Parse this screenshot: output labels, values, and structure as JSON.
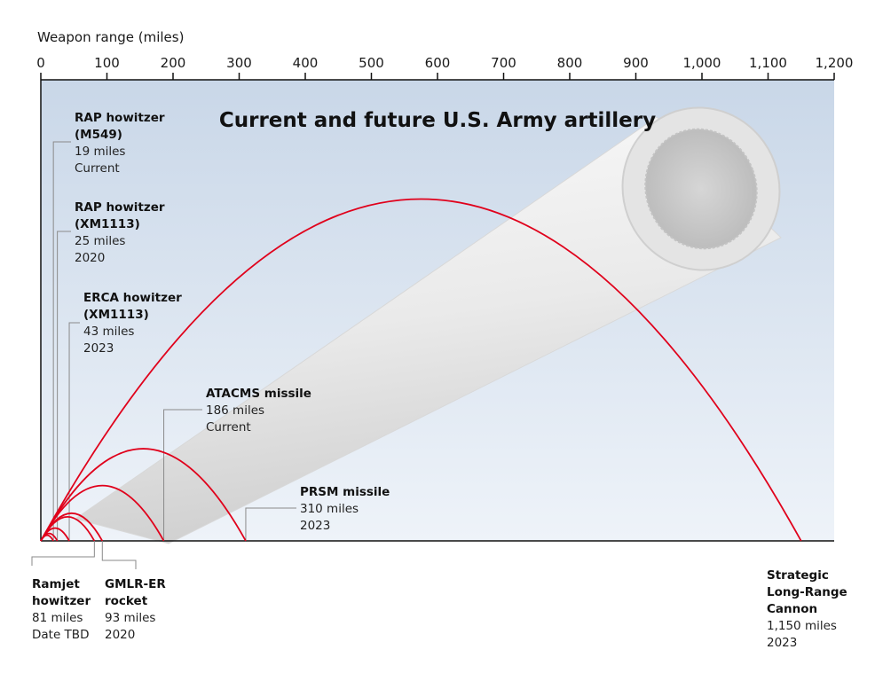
{
  "chart_data": {
    "type": "line",
    "title": "Current and future U.S. Army artillery",
    "xlabel": "Weapon range (miles)",
    "xlim": [
      0,
      1200
    ],
    "xticks": [
      "0",
      "100",
      "200",
      "300",
      "400",
      "500",
      "600",
      "700",
      "800",
      "900",
      "1,000",
      "1,100",
      "1,200"
    ],
    "xtick_values": [
      0,
      100,
      200,
      300,
      400,
      500,
      600,
      700,
      800,
      900,
      1000,
      1100,
      1200
    ],
    "grid": false,
    "arc_color": "#e0001b",
    "series": [
      {
        "id": "rap-m549",
        "name_lines": [
          "RAP howitzer",
          "(M549)"
        ],
        "range_text": "19 miles",
        "date": "Current",
        "range": 19
      },
      {
        "id": "rap-xm1113",
        "name_lines": [
          "RAP howitzer",
          "(XM1113)"
        ],
        "range_text": "25 miles",
        "date": "2020",
        "range": 25
      },
      {
        "id": "erca",
        "name_lines": [
          "ERCA howitzer",
          "(XM1113)"
        ],
        "range_text": "43 miles",
        "date": "2023",
        "range": 43
      },
      {
        "id": "ramjet",
        "name_lines": [
          "Ramjet",
          "howitzer"
        ],
        "range_text": "81 miles",
        "date": "Date TBD",
        "range": 81
      },
      {
        "id": "gmlr",
        "name_lines": [
          "GMLR-ER",
          "rocket"
        ],
        "range_text": "93 miles",
        "date": "2020",
        "range": 93
      },
      {
        "id": "atacms",
        "name_lines": [
          "ATACMS missile"
        ],
        "range_text": "186 miles",
        "date": "Current",
        "range": 186
      },
      {
        "id": "prsm",
        "name_lines": [
          "PRSM missile"
        ],
        "range_text": "310 miles",
        "date": "2023",
        "range": 310
      },
      {
        "id": "slrc",
        "name_lines": [
          "Strategic",
          "Long-Range",
          "Cannon"
        ],
        "range_text": "1,150 miles",
        "date": "2023",
        "range": 1150
      }
    ]
  }
}
